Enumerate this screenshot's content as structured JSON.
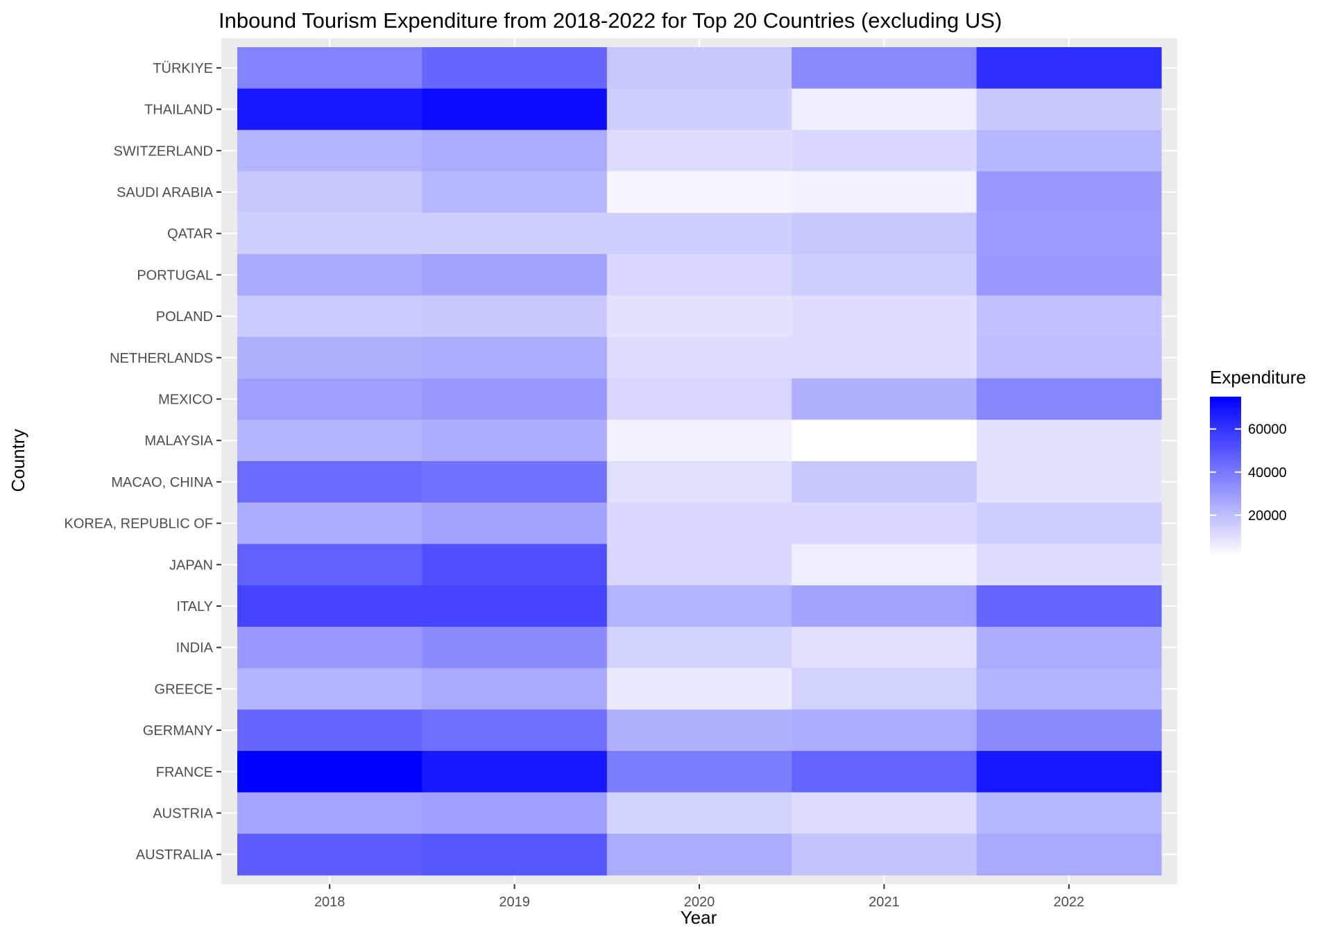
{
  "chart_data": {
    "type": "heatmap",
    "title": "Inbound Tourism Expenditure from 2018-2022 for Top 20 Countries (excluding US)",
    "xlabel": "Year",
    "ylabel": "Country",
    "x": [
      "2018",
      "2019",
      "2020",
      "2021",
      "2022"
    ],
    "y": [
      "TÜRKIYE",
      "THAILAND",
      "SWITZERLAND",
      "SAUDI ARABIA",
      "QATAR",
      "PORTUGAL",
      "POLAND",
      "NETHERLANDS",
      "MEXICO",
      "MALAYSIA",
      "MACAO, CHINA",
      "KOREA, REPUBLIC OF",
      "JAPAN",
      "ITALY",
      "INDIA",
      "GREECE",
      "GERMANY",
      "FRANCE",
      "AUSTRIA",
      "AUSTRALIA"
    ],
    "values": [
      [
        37000,
        45000,
        17000,
        35000,
        62000
      ],
      [
        68000,
        72000,
        15000,
        6000,
        17000
      ],
      [
        23000,
        25000,
        11000,
        12000,
        22000
      ],
      [
        17000,
        22000,
        4000,
        5000,
        31000
      ],
      [
        15000,
        15000,
        15000,
        17000,
        30000
      ],
      [
        26000,
        28000,
        12000,
        15000,
        31000
      ],
      [
        16000,
        17000,
        9000,
        11000,
        19000
      ],
      [
        24000,
        25000,
        11000,
        11000,
        20000
      ],
      [
        29000,
        31000,
        13000,
        24000,
        36000
      ],
      [
        23000,
        25000,
        5000,
        1000,
        9000
      ],
      [
        44000,
        42000,
        10000,
        17000,
        9000
      ],
      [
        25000,
        28000,
        12000,
        12000,
        15000
      ],
      [
        47000,
        52000,
        12000,
        6000,
        11000
      ],
      [
        55000,
        55000,
        23000,
        28000,
        46000
      ],
      [
        31000,
        35000,
        14000,
        10000,
        25000
      ],
      [
        23000,
        26000,
        7000,
        14000,
        23000
      ],
      [
        45000,
        43000,
        24000,
        25000,
        35000
      ],
      [
        75000,
        68000,
        39000,
        46000,
        68000
      ],
      [
        27000,
        29000,
        14000,
        11000,
        22000
      ],
      [
        48000,
        50000,
        25000,
        18000,
        26000
      ]
    ],
    "color_low": "#ffffff",
    "color_high": "#0000ff",
    "legend": {
      "title": "Expenditure",
      "ticks": [
        "20000",
        "40000",
        "60000"
      ],
      "placement": "right"
    },
    "grid": true,
    "panel_background": "#ebebeb"
  }
}
